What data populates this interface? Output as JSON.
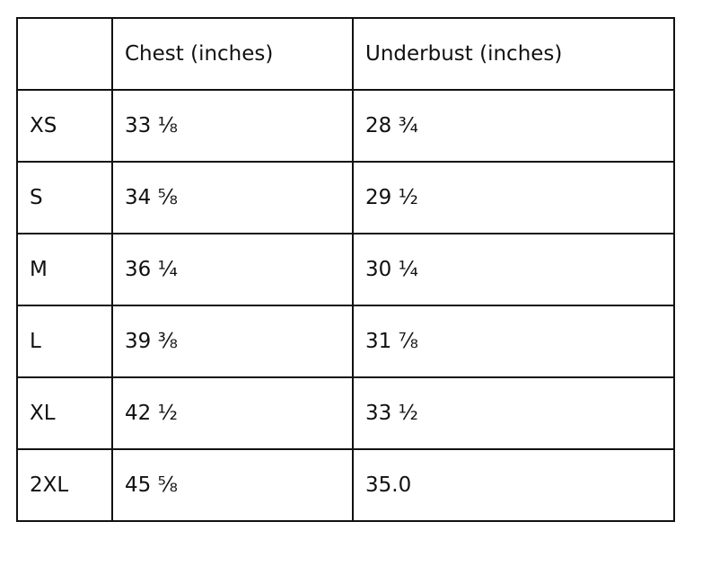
{
  "table": {
    "columns": [
      "Chest (inches)",
      "Underbust (inches)"
    ],
    "rows": [
      [
        "XS",
        "33 ⅛",
        "28 ¾"
      ],
      [
        "S",
        "34 ⅝",
        "29 ½"
      ],
      [
        "M",
        "36 ¼",
        "30 ¼"
      ],
      [
        "L",
        "39 ⅜",
        "31 ⅞"
      ],
      [
        "XL",
        "42 ½",
        "33 ½"
      ],
      [
        "2XL",
        "45 ⅝",
        "35.0"
      ]
    ]
  }
}
